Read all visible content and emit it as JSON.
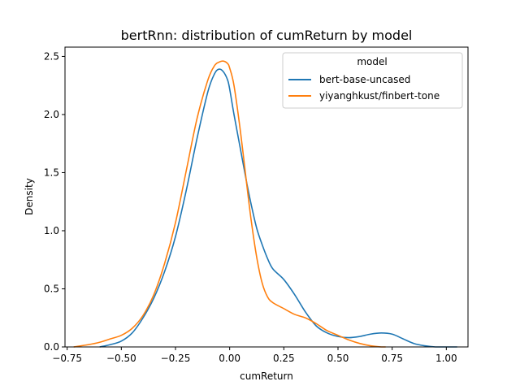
{
  "chart_data": {
    "type": "line",
    "title": "bertRnn: distribution of cumReturn by model",
    "xlabel": "cumReturn",
    "ylabel": "Density",
    "xlim": [
      -0.76,
      1.1
    ],
    "ylim": [
      0,
      2.58
    ],
    "xticks": [
      -0.75,
      -0.5,
      -0.25,
      0.0,
      0.25,
      0.5,
      0.75,
      1.0
    ],
    "xtick_labels": [
      "−0.75",
      "−0.50",
      "−0.25",
      "0.00",
      "0.25",
      "0.50",
      "0.75",
      "1.00"
    ],
    "yticks": [
      0.0,
      0.5,
      1.0,
      1.5,
      2.0,
      2.5
    ],
    "ytick_labels": [
      "0.0",
      "0.5",
      "1.0",
      "1.5",
      "2.0",
      "2.5"
    ],
    "grid": false,
    "legend": {
      "title": "model",
      "placement": "top-right"
    },
    "series": [
      {
        "name": "bert-base-uncased",
        "color": "#1f77b4",
        "x": [
          -0.6,
          -0.55,
          -0.5,
          -0.45,
          -0.4,
          -0.35,
          -0.3,
          -0.25,
          -0.2,
          -0.15,
          -0.1,
          -0.07,
          -0.05,
          -0.03,
          -0.01,
          0.0,
          0.02,
          0.05,
          0.08,
          0.1,
          0.125,
          0.15,
          0.175,
          0.2,
          0.25,
          0.3,
          0.35,
          0.4,
          0.45,
          0.5,
          0.55,
          0.6,
          0.65,
          0.7,
          0.75,
          0.8,
          0.85,
          0.9,
          0.95,
          1.0,
          1.05
        ],
        "values": [
          0.0,
          0.02,
          0.05,
          0.12,
          0.25,
          0.42,
          0.65,
          0.95,
          1.35,
          1.8,
          2.2,
          2.35,
          2.39,
          2.37,
          2.3,
          2.22,
          2.0,
          1.7,
          1.4,
          1.22,
          1.02,
          0.88,
          0.76,
          0.67,
          0.58,
          0.45,
          0.3,
          0.18,
          0.12,
          0.09,
          0.08,
          0.09,
          0.11,
          0.12,
          0.11,
          0.07,
          0.03,
          0.01,
          0.0,
          0.0,
          0.0
        ]
      },
      {
        "name": "yiyanghkust/finbert-tone",
        "color": "#ff7f0e",
        "x": [
          -0.72,
          -0.65,
          -0.6,
          -0.55,
          -0.5,
          -0.45,
          -0.4,
          -0.35,
          -0.3,
          -0.25,
          -0.2,
          -0.15,
          -0.1,
          -0.07,
          -0.05,
          -0.03,
          -0.01,
          0.0,
          0.02,
          0.05,
          0.08,
          0.1,
          0.125,
          0.15,
          0.175,
          0.2,
          0.25,
          0.3,
          0.35,
          0.4,
          0.45,
          0.5,
          0.55,
          0.6,
          0.65,
          0.7,
          0.72
        ],
        "values": [
          0.0,
          0.02,
          0.04,
          0.07,
          0.1,
          0.16,
          0.27,
          0.45,
          0.72,
          1.07,
          1.52,
          1.97,
          2.3,
          2.42,
          2.45,
          2.46,
          2.44,
          2.4,
          2.25,
          1.85,
          1.38,
          1.08,
          0.77,
          0.55,
          0.43,
          0.38,
          0.33,
          0.28,
          0.25,
          0.2,
          0.14,
          0.1,
          0.06,
          0.03,
          0.01,
          0.0,
          0.0
        ]
      }
    ]
  }
}
